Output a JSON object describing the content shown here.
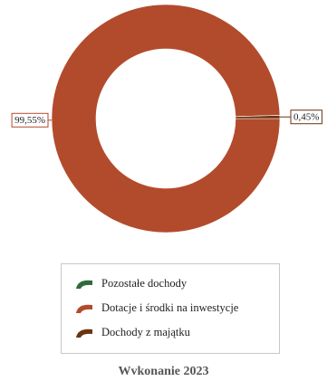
{
  "chart_data": {
    "type": "pie",
    "variant": "donut",
    "title": "Wvkonanie 2023",
    "legend_position": "bottom",
    "series": [
      {
        "name": "Pozostałe dochody",
        "value": 0,
        "color": "#2f6b3a"
      },
      {
        "name": "Dotacje i środki na inwestycje",
        "value": 99.55,
        "label": "99,55%",
        "color": "#b24b2c"
      },
      {
        "name": "Dochody z majątku",
        "value": 0.45,
        "label": "0,45%",
        "color": "#6b3310"
      }
    ]
  }
}
